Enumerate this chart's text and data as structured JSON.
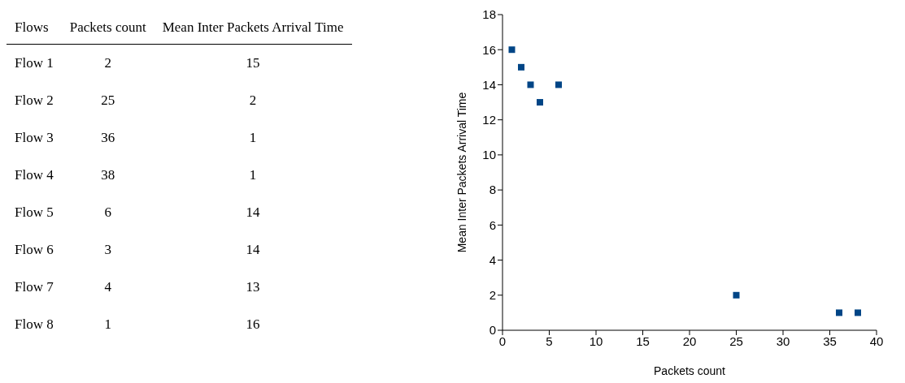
{
  "chart_data": [
    {
      "type": "other",
      "xlabel": "Flows",
      "categories": [
        "Flow 1",
        "Flow 2",
        "Flow 3",
        "Flow 4",
        "Flow 5",
        "Flow 6",
        "Flow 7",
        "Flow 8"
      ],
      "data_labels": true,
      "series": [
        {
          "name": "Packets count",
          "values": [
            2,
            25,
            36,
            38,
            6,
            3,
            4,
            1
          ]
        },
        {
          "name": "Mean Inter Packets Arrival Time",
          "values": [
            15,
            2,
            1,
            1,
            14,
            14,
            13,
            16
          ]
        }
      ]
    },
    {
      "type": "scatter",
      "xlabel": "Packets count",
      "ylabel": "Mean Inter Packets Arrival Time",
      "x": [
        2,
        25,
        36,
        38,
        6,
        3,
        4,
        1
      ],
      "values": [
        15,
        2,
        1,
        1,
        14,
        14,
        13,
        16
      ],
      "color": "#004586",
      "marker": "square",
      "xlim": [
        0,
        40
      ],
      "xticks": [
        0,
        5,
        10,
        15,
        20,
        25,
        30,
        35,
        40
      ],
      "ylim": [
        0,
        18
      ],
      "yticks": [
        0,
        2,
        4,
        6,
        8,
        10,
        12,
        14,
        16,
        18
      ],
      "grid": false,
      "legend": false
    }
  ]
}
